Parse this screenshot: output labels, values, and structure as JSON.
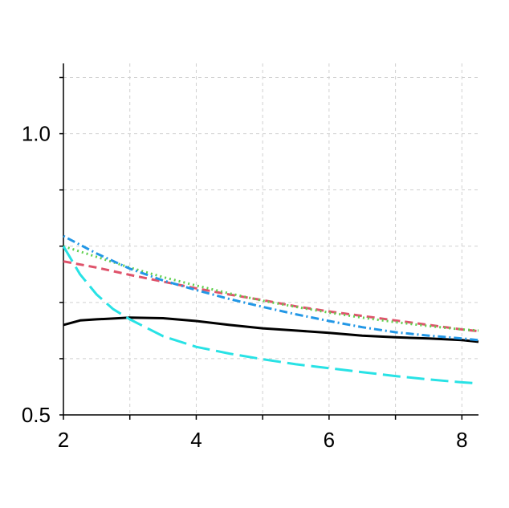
{
  "chart_data": {
    "type": "line",
    "title": "",
    "xlabel": "",
    "ylabel": "",
    "xlim": [
      2,
      8.25
    ],
    "ylim": [
      0.5,
      1.125
    ],
    "grid": true,
    "x_ticks": [
      2,
      3,
      4,
      5,
      6,
      7,
      8
    ],
    "x_tick_labels": [
      {
        "value": 2,
        "label": "2"
      },
      {
        "value": 4,
        "label": "4"
      },
      {
        "value": 6,
        "label": "6"
      },
      {
        "value": 8,
        "label": "8"
      }
    ],
    "y_ticks": [
      0.5,
      0.6,
      0.7,
      0.8,
      0.9,
      1.0,
      1.1
    ],
    "y_tick_labels": [
      {
        "value": 0.5,
        "label": "0.5"
      },
      {
        "value": 1.0,
        "label": "1.0"
      }
    ],
    "series": [
      {
        "color": "#000000",
        "dash": "solid",
        "x": [
          2,
          2.25,
          2.5,
          3,
          3.5,
          4,
          4.5,
          5,
          5.5,
          6,
          6.5,
          7,
          7.5,
          8,
          8.25
        ],
        "y": [
          0.66,
          0.668,
          0.67,
          0.673,
          0.672,
          0.667,
          0.66,
          0.654,
          0.65,
          0.646,
          0.641,
          0.638,
          0.636,
          0.633,
          0.63
        ]
      },
      {
        "color": "#df536b",
        "dash": "dashed",
        "x": [
          2,
          2.5,
          3,
          3.5,
          4,
          4.5,
          5,
          5.5,
          6,
          6.5,
          7,
          7.5,
          8,
          8.25
        ],
        "y": [
          0.773,
          0.762,
          0.749,
          0.737,
          0.725,
          0.714,
          0.704,
          0.693,
          0.684,
          0.676,
          0.668,
          0.66,
          0.652,
          0.649
        ]
      },
      {
        "color": "#61d04f",
        "dash": "dotted",
        "x": [
          2,
          2.5,
          3,
          3.5,
          4,
          4.5,
          5,
          5.5,
          6,
          6.5,
          7,
          7.5,
          8,
          8.25
        ],
        "y": [
          0.8,
          0.781,
          0.762,
          0.745,
          0.73,
          0.716,
          0.703,
          0.692,
          0.682,
          0.673,
          0.665,
          0.658,
          0.652,
          0.65
        ]
      },
      {
        "color": "#2297e6",
        "dash": "dotdash",
        "x": [
          2,
          2.5,
          3,
          3.5,
          4,
          4.5,
          5,
          5.5,
          6,
          6.5,
          7,
          7.5,
          8,
          8.25
        ],
        "y": [
          0.818,
          0.787,
          0.76,
          0.739,
          0.722,
          0.706,
          0.692,
          0.679,
          0.667,
          0.656,
          0.647,
          0.641,
          0.636,
          0.633
        ]
      },
      {
        "color": "#28e2e5",
        "dash": "longdash",
        "x": [
          2,
          2.25,
          2.5,
          2.75,
          3,
          3.5,
          4,
          4.5,
          5,
          5.5,
          6,
          6.5,
          7,
          7.5,
          8,
          8.25
        ],
        "y": [
          0.8,
          0.75,
          0.714,
          0.688,
          0.67,
          0.64,
          0.621,
          0.609,
          0.599,
          0.59,
          0.583,
          0.576,
          0.569,
          0.563,
          0.558,
          0.556
        ]
      }
    ]
  }
}
